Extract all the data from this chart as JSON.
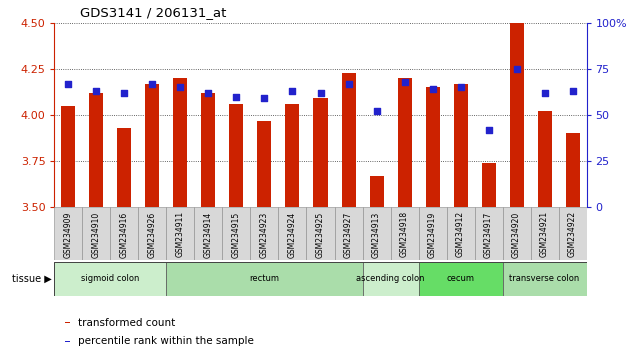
{
  "title": "GDS3141 / 206131_at",
  "samples": [
    "GSM234909",
    "GSM234910",
    "GSM234916",
    "GSM234926",
    "GSM234911",
    "GSM234914",
    "GSM234915",
    "GSM234923",
    "GSM234924",
    "GSM234925",
    "GSM234927",
    "GSM234913",
    "GSM234918",
    "GSM234919",
    "GSM234912",
    "GSM234917",
    "GSM234920",
    "GSM234921",
    "GSM234922"
  ],
  "transformed_count": [
    4.05,
    4.12,
    3.93,
    4.17,
    4.2,
    4.12,
    4.06,
    3.97,
    4.06,
    4.09,
    4.23,
    3.67,
    4.2,
    4.15,
    4.17,
    3.74,
    4.5,
    4.02,
    3.9
  ],
  "percentile_rank": [
    67,
    63,
    62,
    67,
    65,
    62,
    60,
    59,
    63,
    62,
    67,
    52,
    68,
    64,
    65,
    42,
    75,
    62,
    63
  ],
  "ylim_left": [
    3.5,
    4.5
  ],
  "ylim_right": [
    0,
    100
  ],
  "yticks_left": [
    3.5,
    3.75,
    4.0,
    4.25,
    4.5
  ],
  "yticks_right": [
    0,
    25,
    50,
    75,
    100
  ],
  "ytick_labels_right": [
    "0",
    "25",
    "50",
    "75",
    "100%"
  ],
  "bar_color": "#cc2200",
  "dot_color": "#2222cc",
  "tissue_groups": [
    {
      "label": "sigmoid colon",
      "start": 0,
      "end": 3,
      "color": "#cceecc"
    },
    {
      "label": "rectum",
      "start": 4,
      "end": 10,
      "color": "#aaddaa"
    },
    {
      "label": "ascending colon",
      "start": 11,
      "end": 12,
      "color": "#cceecc"
    },
    {
      "label": "cecum",
      "start": 13,
      "end": 15,
      "color": "#66dd66"
    },
    {
      "label": "transverse colon",
      "start": 16,
      "end": 18,
      "color": "#aaddaa"
    }
  ],
  "background_color": "#ffffff",
  "grid_color": "#333333"
}
